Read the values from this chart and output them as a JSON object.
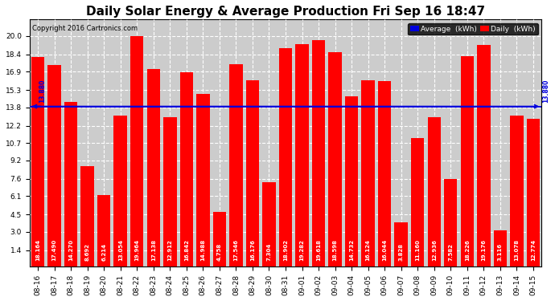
{
  "title": "Daily Solar Energy & Average Production Fri Sep 16 18:47",
  "copyright_text": "Copyright 2016 Cartronics.com",
  "average_value": 13.88,
  "average_label": "13.880",
  "bar_color": "#ff0000",
  "average_line_color": "#0000dd",
  "background_color": "#ffffff",
  "plot_bg_color": "#cccccc",
  "ylim_max": 21.4,
  "yticks": [
    1.4,
    3.0,
    4.5,
    6.1,
    7.6,
    9.2,
    10.7,
    12.2,
    13.8,
    15.3,
    16.9,
    18.4,
    20.0
  ],
  "categories": [
    "08-16",
    "08-17",
    "08-18",
    "08-19",
    "08-20",
    "08-21",
    "08-22",
    "08-23",
    "08-24",
    "08-25",
    "08-26",
    "08-27",
    "08-28",
    "08-29",
    "08-30",
    "08-31",
    "09-01",
    "09-02",
    "09-03",
    "09-04",
    "09-05",
    "09-06",
    "09-07",
    "09-08",
    "09-09",
    "09-10",
    "09-11",
    "09-12",
    "09-13",
    "09-14",
    "09-15"
  ],
  "values": [
    18.164,
    17.49,
    14.27,
    8.692,
    6.214,
    13.054,
    19.964,
    17.138,
    12.912,
    16.842,
    14.988,
    4.758,
    17.546,
    16.176,
    7.304,
    18.902,
    19.282,
    19.618,
    18.598,
    14.732,
    16.124,
    16.044,
    3.828,
    11.16,
    12.936,
    7.582,
    18.226,
    19.176,
    3.116,
    13.078,
    12.774
  ],
  "value_labels": [
    "18.164",
    "17.490",
    "14.270",
    "8.692",
    "6.214",
    "13.054",
    "19.964",
    "17.138",
    "12.912",
    "16.842",
    "14.988",
    "4.758",
    "17.546",
    "16.176",
    "7.304",
    "18.902",
    "19.282",
    "19.618",
    "18.598",
    "14.732",
    "16.124",
    "16.044",
    "3.828",
    "11.160",
    "12.936",
    "7.582",
    "18.226",
    "19.176",
    "3.116",
    "13.078",
    "12.774"
  ],
  "title_fontsize": 11,
  "label_fontsize": 5.0,
  "tick_fontsize": 6.5,
  "copyright_fontsize": 6,
  "legend_fontsize": 6.5
}
